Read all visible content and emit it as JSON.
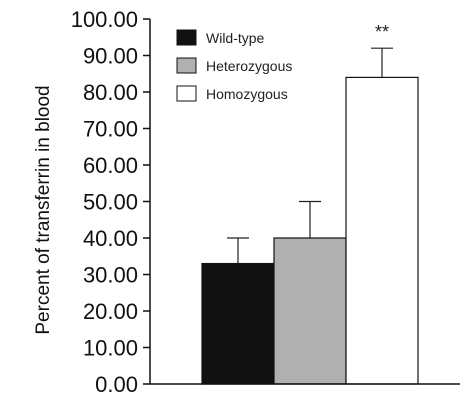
{
  "chart_data": {
    "type": "bar",
    "title": "",
    "xlabel": "",
    "ylabel": "Percent of transferrin in blood",
    "ylim": [
      0,
      100
    ],
    "yticks": [
      "0.00",
      "10.00",
      "20.00",
      "30.00",
      "40.00",
      "50.00",
      "60.00",
      "70.00",
      "80.00",
      "90.00",
      "100.00"
    ],
    "grid": false,
    "legend_position": "top-left",
    "series": [
      {
        "name": "Wild-type",
        "value": 33,
        "error": 7,
        "color": "#111111"
      },
      {
        "name": "Heterozygous",
        "value": 40,
        "error": 10,
        "color": "#b0b0b0"
      },
      {
        "name": "Homozygous",
        "value": 84,
        "error": 8,
        "color": "#ffffff",
        "annotation": "**"
      }
    ]
  }
}
